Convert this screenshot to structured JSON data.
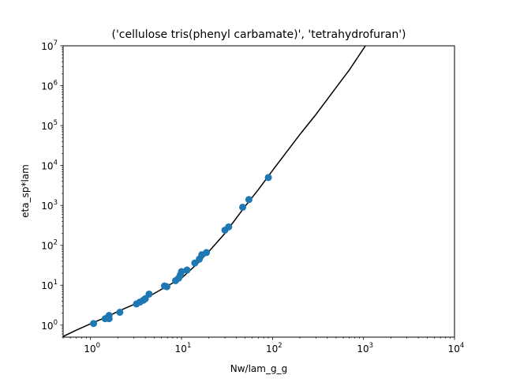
{
  "chart_data": {
    "type": "scatter",
    "title": "('cellulose tris(phenyl carbamate)', 'tetrahydrofuran')",
    "xlabel": "Nw/lam_g_g",
    "ylabel": "eta_sp*lam",
    "xscale": "log",
    "yscale": "log",
    "xlim": [
      0.5,
      10000
    ],
    "ylim": [
      0.5,
      10000000
    ],
    "grid": false,
    "x_ticks": [
      {
        "value": 1,
        "base": "10",
        "exp": "0"
      },
      {
        "value": 10,
        "base": "10",
        "exp": "1"
      },
      {
        "value": 100,
        "base": "10",
        "exp": "2"
      },
      {
        "value": 1000,
        "base": "10",
        "exp": "3"
      },
      {
        "value": 10000,
        "base": "10",
        "exp": "4"
      }
    ],
    "y_ticks": [
      {
        "value": 1,
        "base": "10",
        "exp": "0"
      },
      {
        "value": 10,
        "base": "10",
        "exp": "1"
      },
      {
        "value": 100,
        "base": "10",
        "exp": "2"
      },
      {
        "value": 1000,
        "base": "10",
        "exp": "3"
      },
      {
        "value": 10000,
        "base": "10",
        "exp": "4"
      },
      {
        "value": 100000,
        "base": "10",
        "exp": "5"
      },
      {
        "value": 1000000,
        "base": "10",
        "exp": "6"
      },
      {
        "value": 10000000,
        "base": "10",
        "exp": "7"
      }
    ],
    "scatter_color": "#1f77b4",
    "line_color": "#000000",
    "points": [
      [
        1.08,
        1.1
      ],
      [
        1.45,
        1.45
      ],
      [
        1.55,
        1.55
      ],
      [
        1.6,
        1.75
      ],
      [
        1.6,
        1.45
      ],
      [
        2.1,
        2.1
      ],
      [
        3.2,
        3.4
      ],
      [
        3.5,
        3.8
      ],
      [
        3.8,
        4.2
      ],
      [
        4.0,
        4.6
      ],
      [
        4.4,
        6.0
      ],
      [
        6.5,
        9.6
      ],
      [
        6.9,
        9.2
      ],
      [
        8.6,
        13.0
      ],
      [
        9.3,
        15.0
      ],
      [
        9.7,
        18.0
      ],
      [
        10.0,
        22.0
      ],
      [
        11.5,
        24.0
      ],
      [
        14.0,
        36.0
      ],
      [
        15.7,
        45.0
      ],
      [
        16.7,
        58.0
      ],
      [
        18.8,
        66.0
      ],
      [
        30.0,
        240.0
      ],
      [
        33.0,
        290.0
      ],
      [
        47.0,
        900.0
      ],
      [
        55.0,
        1400.0
      ],
      [
        90.0,
        5000.0
      ]
    ],
    "fit_line": [
      [
        0.5,
        0.52
      ],
      [
        0.7,
        0.75
      ],
      [
        1.0,
        1.08
      ],
      [
        1.5,
        1.6
      ],
      [
        2.0,
        2.2
      ],
      [
        3.0,
        3.3
      ],
      [
        4.0,
        4.6
      ],
      [
        5.0,
        6.2
      ],
      [
        7.0,
        9.6
      ],
      [
        10.0,
        15.0
      ],
      [
        15.0,
        35.0
      ],
      [
        20.0,
        70.0
      ],
      [
        30.0,
        200.0
      ],
      [
        50.0,
        950.0
      ],
      [
        70.0,
        2500.0
      ],
      [
        100.0,
        7500.0
      ],
      [
        200.0,
        60000.0
      ],
      [
        300.0,
        190000.0
      ],
      [
        500.0,
        900000.0
      ],
      [
        700.0,
        2500000.0
      ],
      [
        1050.0,
        10000000.0
      ]
    ]
  }
}
